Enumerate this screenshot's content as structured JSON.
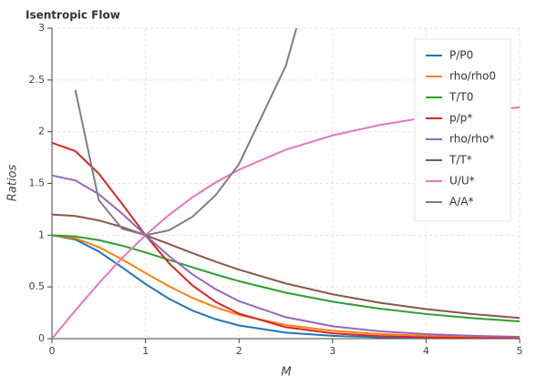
{
  "chart_data": {
    "type": "line",
    "title": "Isentropic Flow",
    "x_label": "M",
    "y_label": "Ratios",
    "x": [
      0,
      0.25,
      0.5,
      0.75,
      1,
      1.25,
      1.5,
      1.75,
      2,
      2.5,
      3,
      3.5,
      4,
      4.5,
      5
    ],
    "series": [
      {
        "name": "P/P0",
        "color": "#1f77b4",
        "values": [
          1,
          0.9575,
          0.843,
          0.6886,
          0.5283,
          0.3861,
          0.2724,
          0.1878,
          0.1278,
          0.0585,
          0.0272,
          0.0131,
          0.0066,
          0.0035,
          0.0019
        ]
      },
      {
        "name": "rho/rho0",
        "color": "#ff7f0e",
        "values": [
          1,
          0.9694,
          0.8852,
          0.7661,
          0.6339,
          0.5067,
          0.395,
          0.3029,
          0.23,
          0.1317,
          0.0762,
          0.0452,
          0.0277,
          0.0174,
          0.0113
        ]
      },
      {
        "name": "T/T0",
        "color": "#2ca02c",
        "values": [
          1,
          0.9877,
          0.9524,
          0.8989,
          0.8333,
          0.7619,
          0.6897,
          0.6202,
          0.5556,
          0.4444,
          0.3571,
          0.2899,
          0.2381,
          0.198,
          0.1667
        ]
      },
      {
        "name": "p/p*",
        "color": "#d62728",
        "values": [
          1.8929,
          1.8125,
          1.5957,
          1.3035,
          1,
          0.7309,
          0.5156,
          0.3555,
          0.2419,
          0.1107,
          0.0515,
          0.0248,
          0.0125,
          0.0066,
          0.0036
        ]
      },
      {
        "name": "rho/rho*",
        "color": "#9467bd",
        "values": [
          1.5774,
          1.5291,
          1.3963,
          1.2085,
          1,
          0.7993,
          0.6231,
          0.4778,
          0.3628,
          0.2077,
          0.1202,
          0.0713,
          0.0437,
          0.0274,
          0.0178
        ]
      },
      {
        "name": "T/T*",
        "color": "#8c564b",
        "values": [
          1.2,
          1.1852,
          1.1429,
          1.0787,
          1,
          0.9143,
          0.8276,
          0.7442,
          0.6667,
          0.5333,
          0.4286,
          0.3479,
          0.2857,
          0.2376,
          0.2
        ]
      },
      {
        "name": "U/U*",
        "color": "#e377c2",
        "values": [
          0,
          0.2722,
          0.5345,
          0.779,
          1,
          1.1952,
          1.3646,
          1.5097,
          1.633,
          1.8257,
          1.964,
          2.0642,
          2.1381,
          2.1933,
          2.2361
        ]
      },
      {
        "name": "A/A*",
        "color": "#7f7f7f",
        "values": [
          null,
          2.4027,
          1.3398,
          1.0624,
          1,
          1.0467,
          1.1762,
          1.3864,
          1.6875,
          2.6367,
          4.2346,
          null,
          null,
          null,
          null
        ]
      }
    ],
    "xlim": [
      0,
      5
    ],
    "ylim": [
      0,
      3
    ],
    "xticks": [
      0,
      1,
      2,
      3,
      4,
      5
    ],
    "yticks": [
      0,
      0.5,
      1,
      1.5,
      2,
      2.5,
      3
    ],
    "grid": true,
    "legend": "top-right"
  }
}
